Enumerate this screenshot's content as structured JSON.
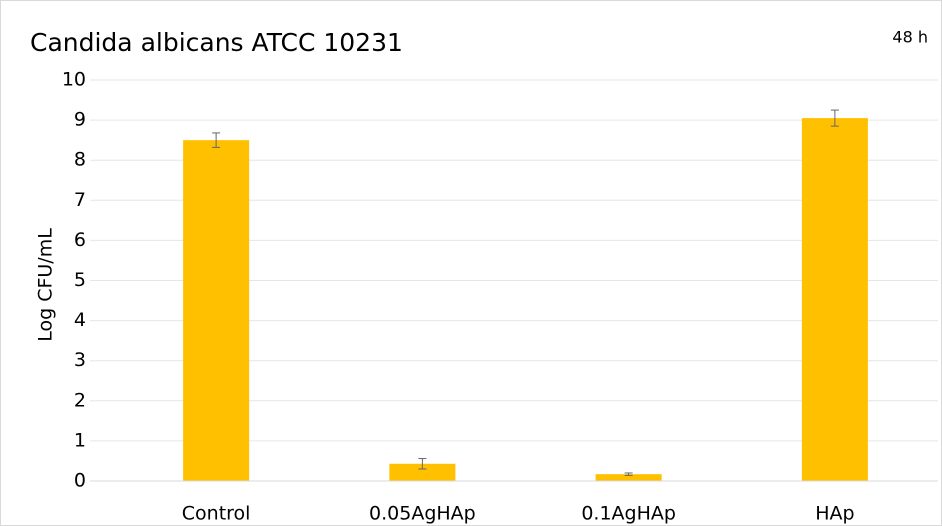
{
  "chart_data": {
    "type": "bar",
    "title": "Candida albicans ATCC 10231",
    "annotation": "48 h",
    "y_label": "Log CFU/mL",
    "categories": [
      "Control",
      "0.05AgHAp",
      "0.1AgHAp",
      "HAp"
    ],
    "values": [
      8.5,
      0.43,
      0.17,
      9.05
    ],
    "errors": [
      0.18,
      0.13,
      0.03,
      0.2
    ],
    "color": "#ffc000",
    "ylim": [
      0,
      10
    ],
    "yticks": [
      0,
      1,
      2,
      3,
      4,
      5,
      6,
      7,
      8,
      9,
      10
    ],
    "grid": true
  }
}
